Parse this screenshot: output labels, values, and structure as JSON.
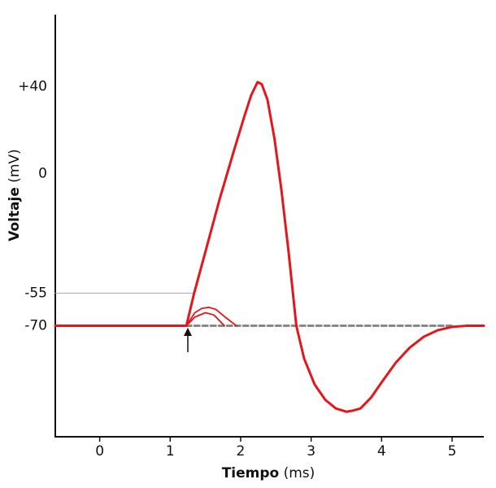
{
  "chart_data": {
    "type": "line",
    "x_label": "Tiempo",
    "x_unit": "(ms)",
    "y_label": "Voltaje",
    "y_unit": "(mV)",
    "xlim": [
      -0.63,
      5.45
    ],
    "ylim": [
      -121,
      73
    ],
    "xticks": [
      0,
      1,
      2,
      3,
      4,
      5
    ],
    "yticks": [
      {
        "value": 40,
        "label": "+40"
      },
      0,
      -55,
      -70
    ],
    "series": [
      {
        "color": "#b0a0a8",
        "style": "thin",
        "x": [
          -0.63,
          1.34
        ],
        "values": [
          -55,
          -55
        ]
      },
      {
        "color": "#888888",
        "style": "dashed",
        "x": [
          1.23,
          5.0
        ],
        "values": [
          -70,
          -70
        ]
      },
      {
        "color": "#e3171b",
        "style": "thin",
        "x": [
          1.23,
          1.35,
          1.45,
          1.55,
          1.65,
          1.78,
          1.94
        ],
        "values": [
          -70,
          -64,
          -62,
          -61.5,
          -62.5,
          -66,
          -70
        ]
      },
      {
        "color": "#e3171b",
        "style": "thin",
        "x": [
          1.23,
          1.35,
          1.5,
          1.62,
          1.77
        ],
        "values": [
          -70,
          -66,
          -64,
          -65,
          -70
        ]
      },
      {
        "color": "#e3171b",
        "style": "solid",
        "x": [
          -0.63,
          1.23,
          1.34,
          1.5,
          1.7,
          1.9,
          2.05,
          2.15,
          2.24,
          2.3,
          2.38,
          2.48,
          2.58,
          2.68,
          2.79,
          2.9,
          3.05,
          3.2,
          3.35,
          3.5,
          3.59,
          3.7,
          3.85,
          4.0,
          4.2,
          4.4,
          4.6,
          4.8,
          5.0,
          5.2,
          5.45
        ],
        "values": [
          -70,
          -70,
          -55,
          -36,
          -12,
          10,
          26,
          36,
          42,
          41,
          34,
          16,
          -8,
          -36,
          -70,
          -85,
          -97,
          -104,
          -108,
          -109.5,
          -109,
          -108,
          -103,
          -96,
          -87,
          -80,
          -75,
          -72,
          -70.5,
          -70,
          -70
        ]
      }
    ]
  }
}
